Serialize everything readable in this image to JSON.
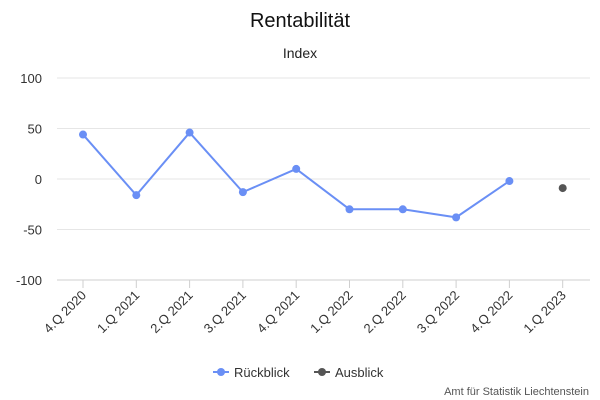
{
  "chart_data": {
    "type": "line",
    "title": "Rentabilität",
    "subtitle": "Index",
    "categories": [
      "4.Q 2020",
      "1.Q 2021",
      "2.Q 2021",
      "3.Q 2021",
      "4.Q 2021",
      "1.Q 2022",
      "2.Q 2022",
      "3.Q 2022",
      "4.Q 2022",
      "1.Q 2023"
    ],
    "series": [
      {
        "name": "Rückblick",
        "color": "#6a8ff5",
        "values": [
          44,
          -16,
          46,
          -13,
          10,
          -30,
          -30,
          -38,
          -2,
          null
        ]
      },
      {
        "name": "Ausblick",
        "color": "#555555",
        "values": [
          null,
          null,
          null,
          null,
          null,
          null,
          null,
          null,
          null,
          -9
        ]
      }
    ],
    "ylim": [
      -100,
      100
    ],
    "yticks": [
      -100,
      -50,
      0,
      50,
      100
    ],
    "grid": true,
    "legend": "bottom-center",
    "credit": "Amt für Statistik Liechtenstein"
  }
}
